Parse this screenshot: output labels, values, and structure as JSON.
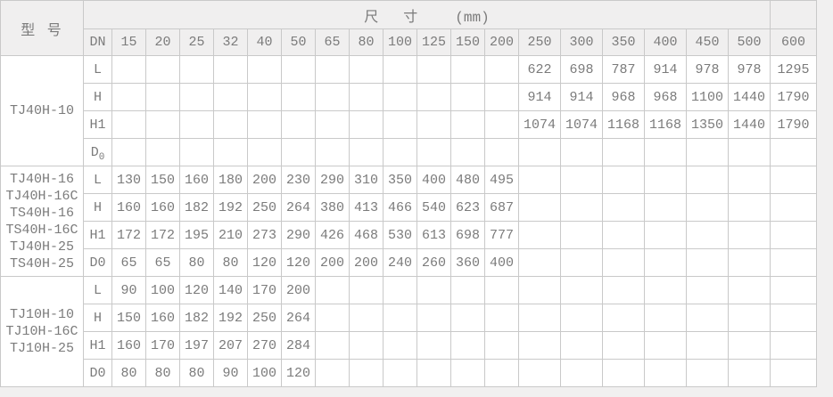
{
  "colors": {
    "page_bg": "#f1f0f0",
    "cell_bg": "#ffffff",
    "header_bg": "#f0efef",
    "border": "#c9c9c9",
    "text": "#7b7b7b"
  },
  "header": {
    "model_label": "型 号",
    "size_label": "尺　寸",
    "size_unit": "(mm)",
    "dn_label": "DN",
    "dn_values": [
      "15",
      "20",
      "25",
      "32",
      "40",
      "50",
      "65",
      "80",
      "100",
      "125",
      "150",
      "200",
      "250",
      "300",
      "350",
      "400",
      "450",
      "500",
      "600"
    ]
  },
  "groups": [
    {
      "models": [
        "TJ40H-10"
      ],
      "rows": [
        {
          "label": "L",
          "values": [
            "",
            "",
            "",
            "",
            "",
            "",
            "",
            "",
            "",
            "",
            "",
            "",
            "622",
            "698",
            "787",
            "914",
            "978",
            "978",
            "1295"
          ]
        },
        {
          "label": "H",
          "values": [
            "",
            "",
            "",
            "",
            "",
            "",
            "",
            "",
            "",
            "",
            "",
            "",
            "914",
            "914",
            "968",
            "968",
            "1100",
            "1440",
            "1790"
          ]
        },
        {
          "label": "H1",
          "values": [
            "",
            "",
            "",
            "",
            "",
            "",
            "",
            "",
            "",
            "",
            "",
            "",
            "1074",
            "1074",
            "1168",
            "1168",
            "1350",
            "1440",
            "1790"
          ]
        },
        {
          "label": "D",
          "sub": "0",
          "values": [
            "",
            "",
            "",
            "",
            "",
            "",
            "",
            "",
            "",
            "",
            "",
            "",
            "",
            "",
            "",
            "",
            "",
            "",
            ""
          ]
        }
      ]
    },
    {
      "models": [
        "TJ40H-16",
        "TJ40H-16C",
        "TS40H-16",
        "TS40H-16C",
        "TJ40H-25",
        "TS40H-25"
      ],
      "rows": [
        {
          "label": "L",
          "values": [
            "130",
            "150",
            "160",
            "180",
            "200",
            "230",
            "290",
            "310",
            "350",
            "400",
            "480",
            "495",
            "",
            "",
            "",
            "",
            "",
            "",
            ""
          ]
        },
        {
          "label": "H",
          "values": [
            "160",
            "160",
            "182",
            "192",
            "250",
            "264",
            "380",
            "413",
            "466",
            "540",
            "623",
            "687",
            "",
            "",
            "",
            "",
            "",
            "",
            ""
          ]
        },
        {
          "label": "H1",
          "values": [
            "172",
            "172",
            "195",
            "210",
            "273",
            "290",
            "426",
            "468",
            "530",
            "613",
            "698",
            "777",
            "",
            "",
            "",
            "",
            "",
            "",
            ""
          ]
        },
        {
          "label": "D0",
          "values": [
            "65",
            "65",
            "80",
            "80",
            "120",
            "120",
            "200",
            "200",
            "240",
            "260",
            "360",
            "400",
            "",
            "",
            "",
            "",
            "",
            "",
            ""
          ]
        }
      ]
    },
    {
      "models": [
        "TJ10H-10",
        "TJ10H-16C",
        "TJ10H-25"
      ],
      "rows": [
        {
          "label": "L",
          "values": [
            "90",
            "100",
            "120",
            "140",
            "170",
            "200",
            "",
            "",
            "",
            "",
            "",
            "",
            "",
            "",
            "",
            "",
            "",
            "",
            ""
          ]
        },
        {
          "label": "H",
          "values": [
            "150",
            "160",
            "182",
            "192",
            "250",
            "264",
            "",
            "",
            "",
            "",
            "",
            "",
            "",
            "",
            "",
            "",
            "",
            "",
            ""
          ]
        },
        {
          "label": "H1",
          "values": [
            "160",
            "170",
            "197",
            "207",
            "270",
            "284",
            "",
            "",
            "",
            "",
            "",
            "",
            "",
            "",
            "",
            "",
            "",
            "",
            ""
          ]
        },
        {
          "label": "D0",
          "values": [
            "80",
            "80",
            "80",
            "90",
            "100",
            "120",
            "",
            "",
            "",
            "",
            "",
            "",
            "",
            "",
            "",
            "",
            "",
            "",
            ""
          ]
        }
      ]
    }
  ]
}
